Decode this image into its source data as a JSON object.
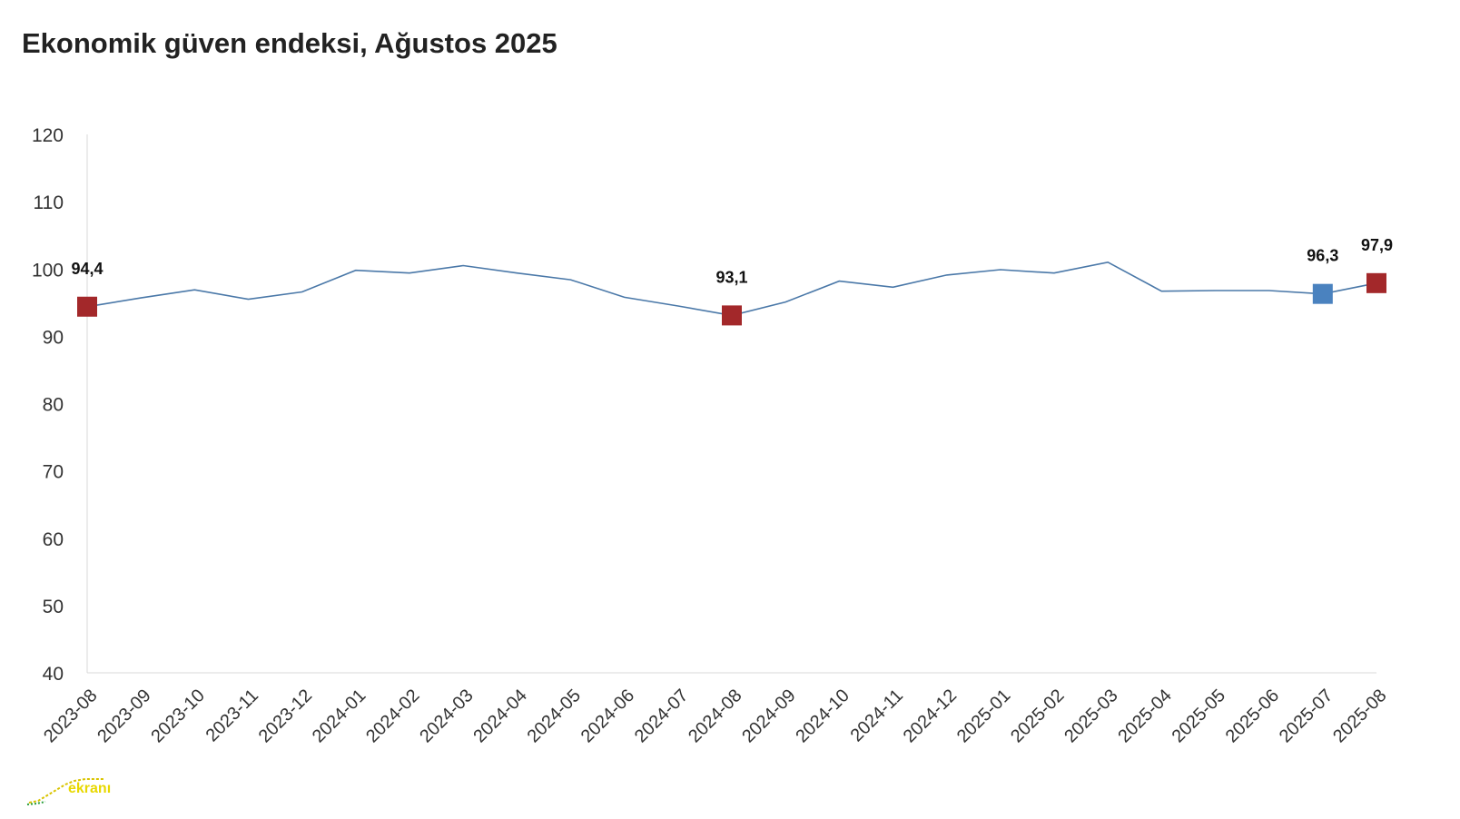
{
  "chart_data": {
    "type": "line",
    "title": "Ekonomik güven endeksi, Ağustos 2025",
    "xlabel": "",
    "ylabel": "",
    "ylim": [
      40,
      120
    ],
    "yticks": [
      "40",
      "50",
      "60",
      "70",
      "80",
      "90",
      "100",
      "110",
      "120"
    ],
    "grid": false,
    "legend": "none",
    "categories": [
      "2023-08",
      "2023-09",
      "2023-10",
      "2023-11",
      "2023-12",
      "2024-01",
      "2024-02",
      "2024-03",
      "2024-04",
      "2024-05",
      "2024-06",
      "2024-07",
      "2024-08",
      "2024-09",
      "2024-10",
      "2024-11",
      "2024-12",
      "2025-01",
      "2025-02",
      "2025-03",
      "2025-04",
      "2025-05",
      "2025-06",
      "2025-07",
      "2025-08"
    ],
    "series": [
      {
        "values": [
          94.4,
          95.7,
          96.9,
          95.5,
          96.6,
          99.8,
          99.4,
          100.5,
          99.4,
          98.4,
          95.8,
          94.5,
          93.1,
          95.1,
          98.2,
          97.3,
          99.1,
          99.9,
          99.4,
          101.0,
          96.7,
          96.8,
          96.8,
          96.3,
          97.9
        ],
        "color": "#4a78a8"
      }
    ],
    "markers": [
      {
        "index": 0,
        "label": "94,4",
        "color": "#a3282a"
      },
      {
        "index": 12,
        "label": "93,1",
        "color": "#a3282a"
      },
      {
        "index": 23,
        "label": "96,3",
        "color": "#4a82bf"
      },
      {
        "index": 24,
        "label": "97,9",
        "color": "#a3282a"
      }
    ]
  },
  "watermark": {
    "text": "ekranı"
  }
}
